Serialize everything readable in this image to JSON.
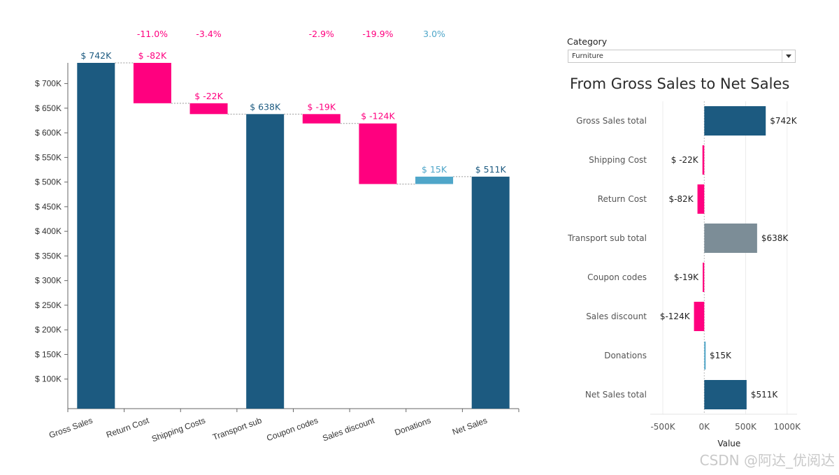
{
  "filter": {
    "label": "Category",
    "selected": "Furniture"
  },
  "panel": {
    "title": "From Gross Sales to Net Sales"
  },
  "watermark": "CSDN @阿达_优阅达",
  "colors": {
    "total": "#1c5a80",
    "negative": "#ff007f",
    "positive": "#4fa6c9",
    "subtotal": "#7c8d97",
    "axis": "#666666",
    "connector": "#999999"
  },
  "chart_data": [
    {
      "type": "bar",
      "subtype": "waterfall",
      "categories": [
        "Gross Sales",
        "Return Cost",
        "Shipping Costs",
        "Transport sub",
        "Coupon codes",
        "Sales discount",
        "Donations",
        "Net Sales"
      ],
      "steps": [
        {
          "category": "Gross Sales",
          "kind": "total",
          "start": 0,
          "end": 742,
          "label": "$ 742K",
          "pct": ""
        },
        {
          "category": "Return Cost",
          "kind": "negative",
          "start": 742,
          "end": 660,
          "label": "$ -82K",
          "pct": "-11.0%"
        },
        {
          "category": "Shipping Costs",
          "kind": "negative",
          "start": 660,
          "end": 638,
          "label": "$ -22K",
          "pct": "-3.4%"
        },
        {
          "category": "Transport sub",
          "kind": "total",
          "start": 0,
          "end": 638,
          "label": "$ 638K",
          "pct": ""
        },
        {
          "category": "Coupon codes",
          "kind": "negative",
          "start": 638,
          "end": 619,
          "label": "$ -19K",
          "pct": "-2.9%"
        },
        {
          "category": "Sales discount",
          "kind": "negative",
          "start": 619,
          "end": 496,
          "label": "$ -124K",
          "pct": "-19.9%"
        },
        {
          "category": "Donations",
          "kind": "positive",
          "start": 496,
          "end": 511,
          "label": "$ 15K",
          "pct": "3.0%"
        },
        {
          "category": "Net Sales",
          "kind": "total",
          "start": 0,
          "end": 511,
          "label": "$ 511K",
          "pct": ""
        }
      ],
      "yticks": [
        {
          "v": 100,
          "label": "$ 100K"
        },
        {
          "v": 150,
          "label": "$ 150K"
        },
        {
          "v": 200,
          "label": "$ 200K"
        },
        {
          "v": 250,
          "label": "$ 250K"
        },
        {
          "v": 300,
          "label": "$ 300K"
        },
        {
          "v": 350,
          "label": "$ 350K"
        },
        {
          "v": 400,
          "label": "$ 400K"
        },
        {
          "v": 450,
          "label": "$ 450K"
        },
        {
          "v": 500,
          "label": "$ 500K"
        },
        {
          "v": 550,
          "label": "$ 550K"
        },
        {
          "v": 600,
          "label": "$ 600K"
        },
        {
          "v": 650,
          "label": "$ 650K"
        },
        {
          "v": 700,
          "label": "$ 700K"
        }
      ],
      "ylim": [
        40,
        742
      ],
      "units": "K"
    },
    {
      "type": "bar",
      "orientation": "horizontal",
      "title": "From Gross Sales to Net Sales",
      "categories": [
        "Gross Sales total",
        "Shipping Cost",
        "Return Cost",
        "Transport sub total",
        "Coupon codes",
        "Sales discount",
        "Donations",
        "Net Sales total"
      ],
      "values": [
        742,
        -22,
        -82,
        638,
        -19,
        -124,
        15,
        511
      ],
      "kinds": [
        "total",
        "negative",
        "negative",
        "subtotal",
        "negative",
        "negative",
        "positive",
        "total"
      ],
      "value_labels": [
        "$742K",
        "$ -22K",
        "$-82K",
        "$638K",
        "$-19K",
        "$-124K",
        "$15K",
        "$511K"
      ],
      "xticks": [
        {
          "v": -500,
          "label": "-500K"
        },
        {
          "v": 0,
          "label": "0K"
        },
        {
          "v": 500,
          "label": "500K"
        },
        {
          "v": 1000,
          "label": "1000K"
        }
      ],
      "xlabel": "Value",
      "xlim": [
        -610,
        1120
      ],
      "grid": true
    }
  ]
}
